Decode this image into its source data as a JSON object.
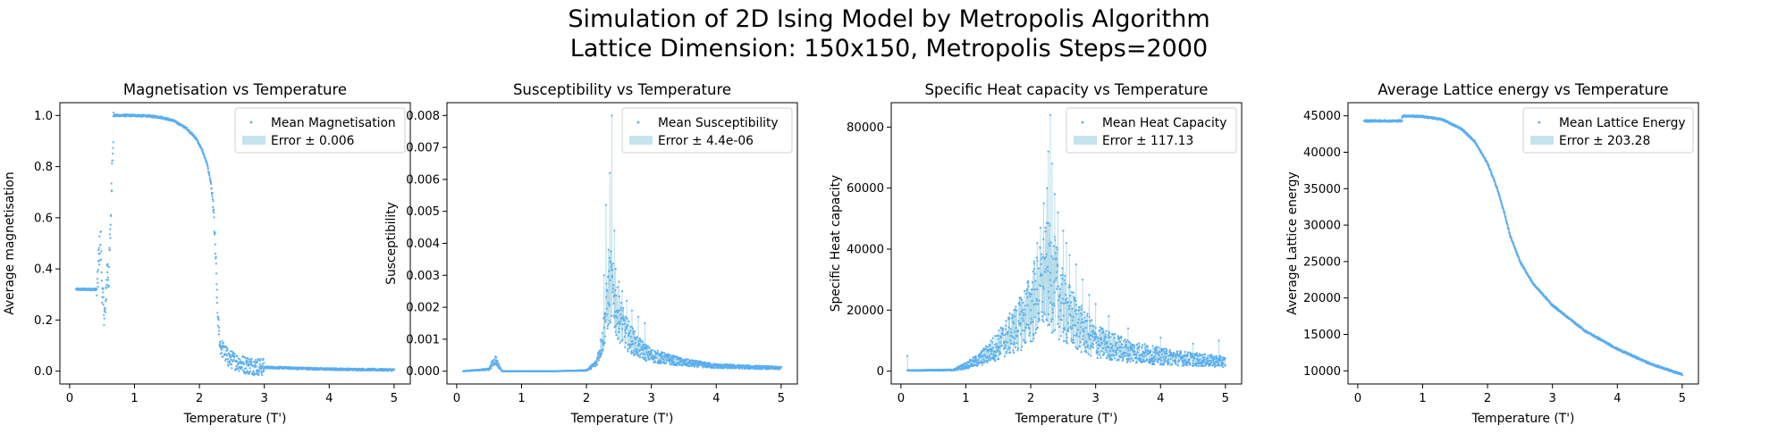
{
  "figure": {
    "title_line1": "Simulation of 2D Ising Model by Metropolis Algorithm",
    "title_line2": "Lattice Dimension: 150x150, Metropolis Steps=2000"
  },
  "colors": {
    "points": "#5aaef0",
    "error_band": "#add8e6",
    "axes": "#000000"
  },
  "chart_data": [
    {
      "type": "scatter",
      "title": "Magnetisation vs Temperature",
      "xlabel": "Temperature (T')",
      "ylabel": "Average magnetisation",
      "xlim": [
        -0.15,
        5.25
      ],
      "ylim": [
        -0.05,
        1.05
      ],
      "xticks": [
        0,
        1,
        2,
        3,
        4,
        5
      ],
      "xtick_labels": [
        "0",
        "1",
        "2",
        "3",
        "4",
        "5"
      ],
      "yticks": [
        0,
        0.2,
        0.4,
        0.6,
        0.8,
        1.0
      ],
      "ytick_labels": [
        "0.0",
        "0.2",
        "0.4",
        "0.6",
        "0.8",
        "1.0"
      ],
      "legend": {
        "position": "top-right",
        "series_label": "Mean Magnetisation",
        "error_label": "Error ± 0.006"
      },
      "curve": [
        [
          0.1,
          0.32
        ],
        [
          0.42,
          0.32
        ],
        [
          0.43,
          0.33
        ],
        [
          0.45,
          0.45
        ],
        [
          0.48,
          0.52
        ],
        [
          0.5,
          0.32
        ],
        [
          0.52,
          0.25
        ],
        [
          0.55,
          0.22
        ],
        [
          0.58,
          0.42
        ],
        [
          0.6,
          0.35
        ],
        [
          0.63,
          0.55
        ],
        [
          0.66,
          0.87
        ],
        [
          0.68,
          1.0
        ],
        [
          1.0,
          1.0
        ],
        [
          1.2,
          0.998
        ],
        [
          1.4,
          0.993
        ],
        [
          1.6,
          0.98
        ],
        [
          1.8,
          0.95
        ],
        [
          1.95,
          0.91
        ],
        [
          2.05,
          0.86
        ],
        [
          2.12,
          0.81
        ],
        [
          2.18,
          0.73
        ],
        [
          2.22,
          0.62
        ],
        [
          2.25,
          0.45
        ],
        [
          2.28,
          0.22
        ],
        [
          2.32,
          0.1
        ],
        [
          2.45,
          0.05
        ],
        [
          2.7,
          0.025
        ],
        [
          3.0,
          0.015
        ],
        [
          4.0,
          0.008
        ],
        [
          5.0,
          0.005
        ]
      ]
    },
    {
      "type": "scatter",
      "title": "Susceptibility vs Temperature",
      "xlabel": "Temperature (T')",
      "ylabel": "Susceptibility",
      "xlim": [
        -0.15,
        5.25
      ],
      "ylim": [
        -0.0004,
        0.0084
      ],
      "xticks": [
        0,
        1,
        2,
        3,
        4,
        5
      ],
      "xtick_labels": [
        "0",
        "1",
        "2",
        "3",
        "4",
        "5"
      ],
      "yticks": [
        0,
        0.001,
        0.002,
        0.003,
        0.004,
        0.005,
        0.006,
        0.007,
        0.008
      ],
      "ytick_labels": [
        "0.000",
        "0.001",
        "0.002",
        "0.003",
        "0.004",
        "0.005",
        "0.006",
        "0.007",
        "0.008"
      ],
      "legend": {
        "position": "top-right",
        "series_label": "Mean Susceptibility",
        "error_label": "Error ± 4.4e-06"
      },
      "curve": [
        [
          0.1,
          0.0
        ],
        [
          0.5,
          5e-05
        ],
        [
          0.55,
          0.0002
        ],
        [
          0.6,
          0.0003
        ],
        [
          0.66,
          0.0001
        ],
        [
          0.7,
          0.0
        ],
        [
          1.5,
          0.0
        ],
        [
          2.0,
          2e-05
        ],
        [
          2.15,
          0.0002
        ],
        [
          2.25,
          0.0008
        ],
        [
          2.3,
          0.0015
        ],
        [
          2.37,
          0.0022
        ],
        [
          2.45,
          0.0016
        ],
        [
          2.6,
          0.001
        ],
        [
          2.8,
          0.0006
        ],
        [
          3.0,
          0.0004
        ],
        [
          3.5,
          0.00022
        ],
        [
          4.0,
          0.00013
        ],
        [
          5.0,
          8e-05
        ]
      ],
      "peaks": [
        [
          2.39,
          0.008
        ],
        [
          2.36,
          0.0062
        ],
        [
          2.3,
          0.0052
        ],
        [
          2.43,
          0.0044
        ],
        [
          2.34,
          0.0038
        ],
        [
          2.45,
          0.0032
        ],
        [
          2.27,
          0.003
        ],
        [
          2.5,
          0.0028
        ],
        [
          2.55,
          0.0025
        ],
        [
          2.62,
          0.0022
        ],
        [
          2.7,
          0.0019
        ],
        [
          2.8,
          0.0017
        ],
        [
          2.9,
          0.0015
        ]
      ]
    },
    {
      "type": "scatter",
      "title": "Specific Heat capacity vs Temperature",
      "xlabel": "Temperature (T')",
      "ylabel": "Specific Heat capacity",
      "xlim": [
        -0.15,
        5.25
      ],
      "ylim": [
        -4200,
        88000
      ],
      "xticks": [
        0,
        1,
        2,
        3,
        4,
        5
      ],
      "xtick_labels": [
        "0",
        "1",
        "2",
        "3",
        "4",
        "5"
      ],
      "yticks": [
        0,
        20000,
        40000,
        60000,
        80000
      ],
      "ytick_labels": [
        "0",
        "20000",
        "40000",
        "60000",
        "80000"
      ],
      "legend": {
        "position": "top-right",
        "series_label": "Mean Heat Capacity",
        "error_label": "Error ± 117.13"
      },
      "curve": [
        [
          0.1,
          200
        ],
        [
          0.8,
          300
        ],
        [
          1.0,
          1500
        ],
        [
          1.2,
          3000
        ],
        [
          1.5,
          7000
        ],
        [
          1.8,
          12000
        ],
        [
          2.0,
          17000
        ],
        [
          2.15,
          22000
        ],
        [
          2.25,
          26000
        ],
        [
          2.35,
          24000
        ],
        [
          2.5,
          17000
        ],
        [
          2.8,
          11000
        ],
        [
          3.0,
          8000
        ],
        [
          3.5,
          5500
        ],
        [
          4.0,
          4000
        ],
        [
          4.5,
          3200
        ],
        [
          5.0,
          2500
        ]
      ],
      "peaks": [
        [
          2.3,
          84000
        ],
        [
          2.27,
          72000
        ],
        [
          2.33,
          68000
        ],
        [
          2.25,
          60000
        ],
        [
          2.37,
          58000
        ],
        [
          2.2,
          55000
        ],
        [
          2.42,
          52000
        ],
        [
          2.15,
          47000
        ],
        [
          2.5,
          46000
        ],
        [
          2.1,
          42000
        ],
        [
          2.55,
          42000
        ],
        [
          2.6,
          38000
        ],
        [
          2.05,
          36000
        ],
        [
          2.7,
          35000
        ],
        [
          2.8,
          30000
        ],
        [
          1.95,
          29000
        ],
        [
          2.9,
          25000
        ],
        [
          3.0,
          22000
        ],
        [
          1.85,
          24000
        ],
        [
          3.2,
          18000
        ],
        [
          1.75,
          20000
        ],
        [
          3.5,
          14000
        ],
        [
          4.0,
          11000
        ],
        [
          4.5,
          9000
        ],
        [
          4.9,
          10000
        ],
        [
          0.1,
          5000
        ]
      ]
    },
    {
      "type": "scatter",
      "title": "Average Lattice energy vs Temperature",
      "xlabel": "Temperature (T')",
      "ylabel": "Average Lattice energy",
      "xlim": [
        -0.15,
        5.25
      ],
      "ylim": [
        8200,
        46800
      ],
      "xticks": [
        0,
        1,
        2,
        3,
        4,
        5
      ],
      "xtick_labels": [
        "0",
        "1",
        "2",
        "3",
        "4",
        "5"
      ],
      "yticks": [
        10000,
        15000,
        20000,
        25000,
        30000,
        35000,
        40000,
        45000
      ],
      "ytick_labels": [
        "10000",
        "15000",
        "20000",
        "25000",
        "30000",
        "35000",
        "40000",
        "45000"
      ],
      "legend": {
        "position": "top-right",
        "series_label": "Mean Lattice Energy",
        "error_label": "Error ± 203.28"
      },
      "curve": [
        [
          0.1,
          44300
        ],
        [
          0.68,
          44300
        ],
        [
          0.69,
          45000
        ],
        [
          1.0,
          44900
        ],
        [
          1.3,
          44500
        ],
        [
          1.6,
          43200
        ],
        [
          1.8,
          41500
        ],
        [
          2.0,
          38500
        ],
        [
          2.15,
          35000
        ],
        [
          2.25,
          32000
        ],
        [
          2.35,
          28500
        ],
        [
          2.5,
          25000
        ],
        [
          2.7,
          22000
        ],
        [
          3.0,
          19000
        ],
        [
          3.5,
          15500
        ],
        [
          4.0,
          13000
        ],
        [
          4.5,
          11000
        ],
        [
          5.0,
          9500
        ]
      ]
    }
  ]
}
